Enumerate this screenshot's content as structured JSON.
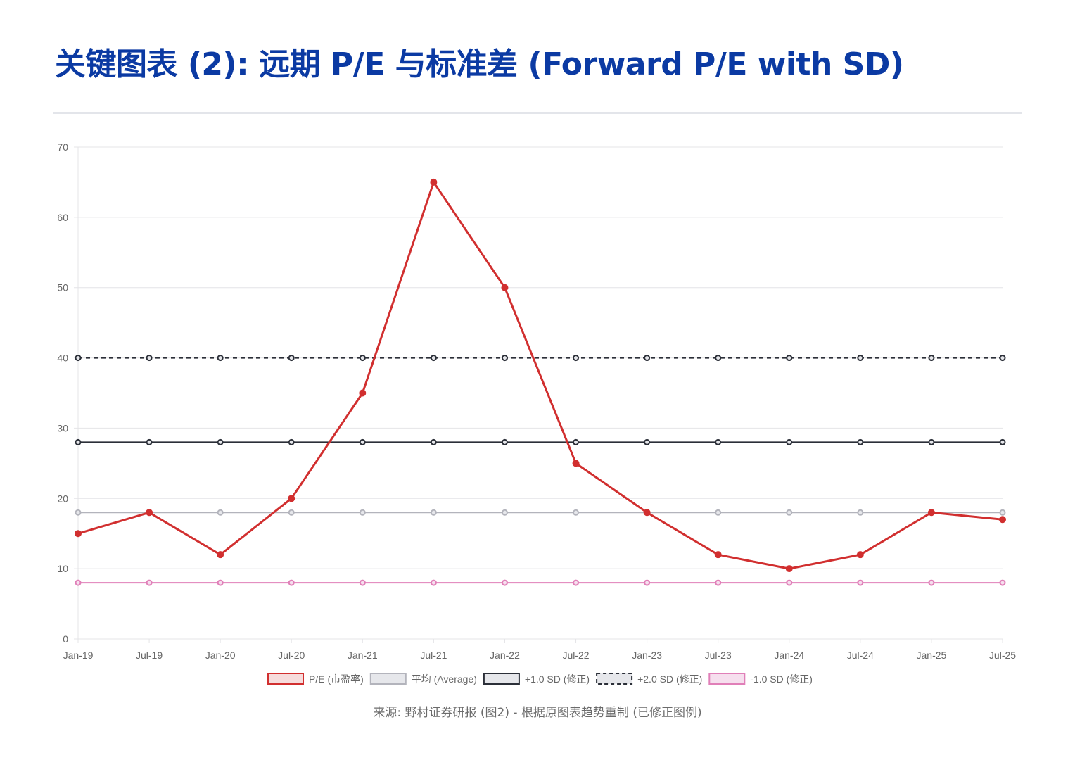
{
  "title": "关键图表 (2): 远期 P/E 与标准差 (Forward P/E with SD)",
  "source_note": "来源: 野村证券研报 (图2) - 根据原图表趋势重制 (已修正图例)",
  "chart_data": {
    "type": "line",
    "title": "",
    "xlabel": "",
    "ylabel": "",
    "ylim": [
      0,
      70
    ],
    "yticks": [
      0,
      10,
      20,
      30,
      40,
      50,
      60,
      70
    ],
    "grid": true,
    "legend_position": "bottom",
    "categories": [
      "Jan-19",
      "Jul-19",
      "Jan-20",
      "Jul-20",
      "Jan-21",
      "Jul-21",
      "Jan-22",
      "Jul-22",
      "Jan-23",
      "Jul-23",
      "Jan-24",
      "Jul-24",
      "Jan-25",
      "Jul-25"
    ],
    "series": [
      {
        "name": "P/E (市盈率)",
        "color": "#d12f2f",
        "fill": "#f6dcdc",
        "style": "solid",
        "values": [
          15,
          18,
          12,
          20,
          35,
          65,
          50,
          25,
          18,
          12,
          10,
          12,
          18,
          17
        ]
      },
      {
        "name": "平均 (Average)",
        "color": "#b3b4bc",
        "fill": "#e6e7eb",
        "style": "solid",
        "values": [
          18,
          18,
          18,
          18,
          18,
          18,
          18,
          18,
          18,
          18,
          18,
          18,
          18,
          18
        ]
      },
      {
        "name": "+1.0 SD (修正)",
        "color": "#2b2f38",
        "fill": "#e6e7eb",
        "style": "solid",
        "values": [
          28,
          28,
          28,
          28,
          28,
          28,
          28,
          28,
          28,
          28,
          28,
          28,
          28,
          28
        ]
      },
      {
        "name": "+2.0 SD (修正)",
        "color": "#2b2f38",
        "fill": "#e6e7eb",
        "style": "dashed",
        "values": [
          40,
          40,
          40,
          40,
          40,
          40,
          40,
          40,
          40,
          40,
          40,
          40,
          40,
          40
        ]
      },
      {
        "name": "-1.0 SD (修正)",
        "color": "#e07fb8",
        "fill": "#f6dfee",
        "style": "solid",
        "values": [
          8,
          8,
          8,
          8,
          8,
          8,
          8,
          8,
          8,
          8,
          8,
          8,
          8,
          8
        ]
      }
    ]
  }
}
